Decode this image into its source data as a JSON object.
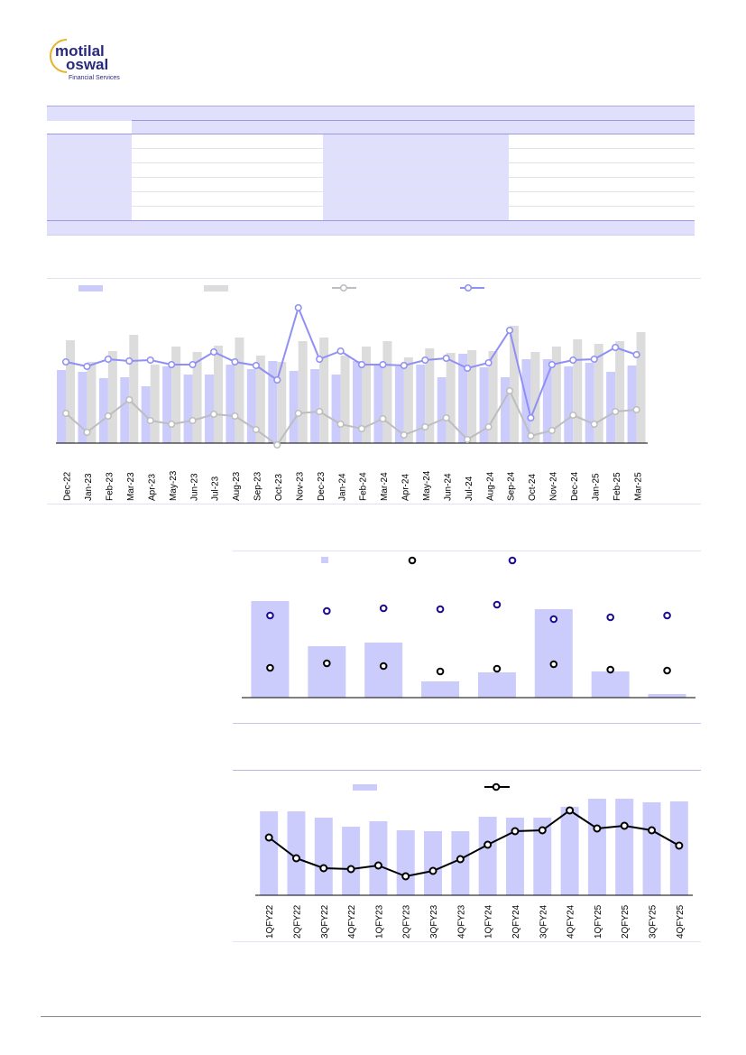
{
  "logo": {
    "brand": "motilal oswal",
    "tagline": "Financial Services"
  },
  "colors": {
    "accent": "#ccccfc",
    "gray": "#dcdcdc",
    "line_blue": "#8f8ff5",
    "line_gray": "#bdbdbd",
    "navy": "#1a0a8c",
    "gold": "#e8b22a"
  },
  "chart_data": [
    {
      "type": "bar",
      "title": "",
      "note": "relative units, no axis shown",
      "categories": [
        "Dec-22",
        "Jan-23",
        "Feb-23",
        "Mar-23",
        "Apr-23",
        "May-23",
        "Jun-23",
        "Jul-23",
        "Aug-23",
        "Sep-23",
        "Oct-23",
        "Nov-23",
        "Dec-23",
        "Jan-24",
        "Feb-24",
        "Mar-24",
        "Apr-24",
        "May-24",
        "Jun-24",
        "Jul-24",
        "Aug-24",
        "Sep-24",
        "Oct-24",
        "Nov-24",
        "Dec-24",
        "Jan-25",
        "Feb-25",
        "Mar-25"
      ],
      "series": [
        {
          "name": "",
          "kind": "bar",
          "color": "#ccccfc",
          "values": [
            81,
            79,
            72,
            73,
            63,
            85,
            76,
            76,
            87,
            82,
            91,
            80,
            82,
            76,
            91,
            88,
            85,
            87,
            73,
            99,
            84,
            73,
            93,
            93,
            85,
            89,
            79,
            86
          ]
        },
        {
          "name": "",
          "kind": "bar",
          "color": "#dcdcdc",
          "values": [
            114,
            90,
            102,
            120,
            87,
            107,
            101,
            108,
            117,
            97,
            90,
            113,
            117,
            97,
            107,
            113,
            95,
            105,
            100,
            103,
            102,
            130,
            101,
            107,
            115,
            110,
            113,
            123
          ]
        },
        {
          "name": "",
          "kind": "line",
          "color": "#bdbdbd",
          "values": [
            33,
            12,
            30,
            48,
            25,
            21,
            25,
            32,
            30,
            15,
            -2,
            33,
            35,
            21,
            16,
            27,
            9,
            18,
            28,
            4,
            18,
            58,
            8,
            14,
            31,
            21,
            35,
            37
          ]
        },
        {
          "name": "",
          "kind": "line",
          "color": "#8f8ff5",
          "values": [
            90,
            85,
            93,
            91,
            92,
            87,
            87,
            101,
            90,
            86,
            70,
            150,
            93,
            102,
            87,
            87,
            86,
            92,
            94,
            83,
            89,
            125,
            28,
            87,
            92,
            93,
            106,
            98
          ]
        }
      ],
      "ylim": [
        -5,
        160
      ]
    },
    {
      "type": "bar",
      "title": "",
      "categories": [
        "",
        "",
        "",
        "",
        "",
        "",
        "",
        ""
      ],
      "series": [
        {
          "name": "",
          "kind": "bar",
          "color": "#ccccfc",
          "values": [
            107,
            57,
            61,
            18,
            28,
            98,
            29,
            4
          ]
        },
        {
          "name": "",
          "kind": "scatter",
          "color": "#000000",
          "values": [
            33,
            38,
            35,
            29,
            32,
            37,
            31,
            30
          ]
        },
        {
          "name": "",
          "kind": "scatter",
          "color": "#1a0a8c",
          "values": [
            91,
            96,
            99,
            98,
            103,
            87,
            89,
            91
          ]
        }
      ],
      "ylim": [
        0,
        115
      ]
    },
    {
      "type": "bar",
      "title": "",
      "categories": [
        "1QFY22",
        "2QFY22",
        "3QFY22",
        "4QFY22",
        "1QFY23",
        "2QFY23",
        "3QFY23",
        "4QFY23",
        "1QFY24",
        "2QFY24",
        "3QFY24",
        "4QFY24",
        "1QFY25",
        "2QFY25",
        "3QFY25",
        "4QFY25"
      ],
      "series": [
        {
          "name": "",
          "kind": "bar",
          "color": "#ccccfc",
          "values": [
            93,
            93,
            86,
            76,
            82,
            72,
            71,
            71,
            87,
            86,
            86,
            98,
            107,
            107,
            103,
            104
          ]
        },
        {
          "name": "",
          "kind": "line",
          "color": "#000000",
          "values": [
            64,
            41,
            30,
            29,
            33,
            21,
            27,
            40,
            56,
            71,
            72,
            94,
            74,
            77,
            72,
            55
          ]
        }
      ],
      "ylim": [
        0,
        115
      ]
    }
  ]
}
